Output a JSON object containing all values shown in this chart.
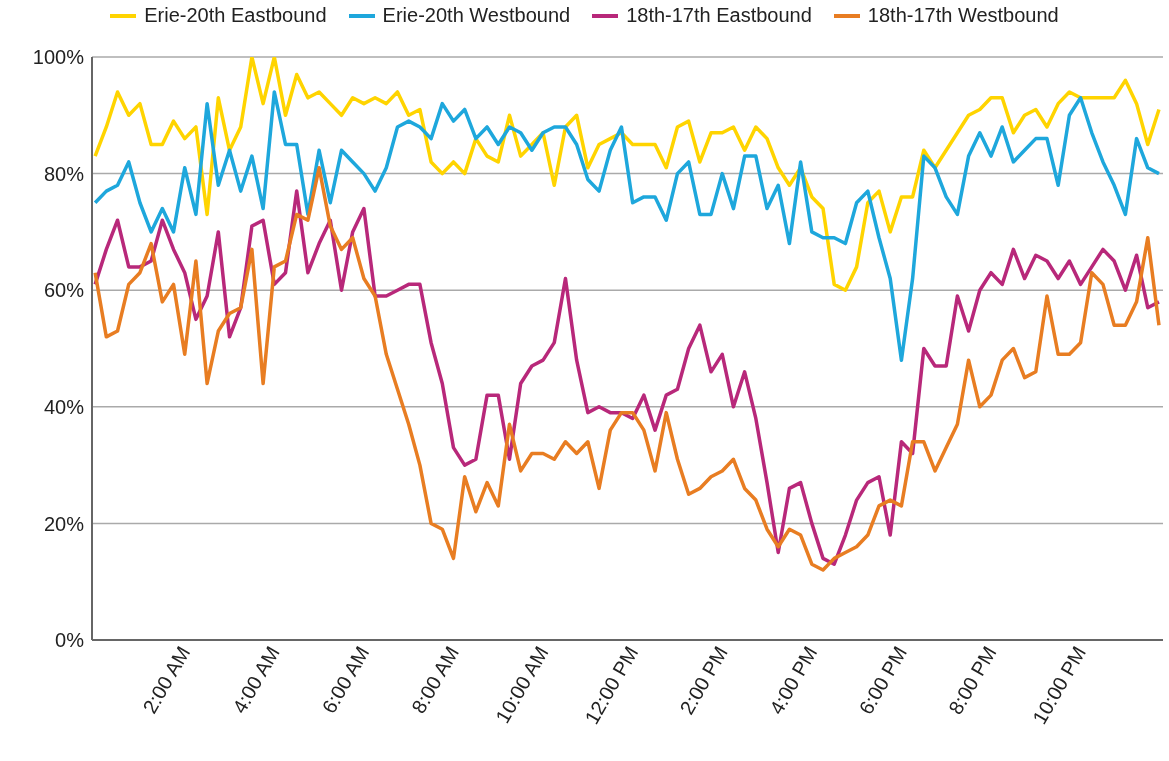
{
  "chart_data": {
    "type": "line",
    "x": [
      0,
      0.25,
      0.5,
      0.75,
      1,
      1.25,
      1.5,
      1.75,
      2,
      2.25,
      2.5,
      2.75,
      3,
      3.25,
      3.5,
      3.75,
      4,
      4.25,
      4.5,
      4.75,
      5,
      5.25,
      5.5,
      5.75,
      6,
      6.25,
      6.5,
      6.75,
      7,
      7.25,
      7.5,
      7.75,
      8,
      8.25,
      8.5,
      8.75,
      9,
      9.25,
      9.5,
      9.75,
      10,
      10.25,
      10.5,
      10.75,
      11,
      11.25,
      11.5,
      11.75,
      12,
      12.25,
      12.5,
      12.75,
      13,
      13.25,
      13.5,
      13.75,
      14,
      14.25,
      14.5,
      14.75,
      15,
      15.25,
      15.5,
      15.75,
      16,
      16.25,
      16.5,
      16.75,
      17,
      17.25,
      17.5,
      17.75,
      18,
      18.25,
      18.5,
      18.75,
      19,
      19.25,
      19.5,
      19.75,
      20,
      20.25,
      20.5,
      20.75,
      21,
      21.25,
      21.5,
      21.75,
      22,
      22.25,
      22.5,
      22.75,
      23,
      23.25,
      23.5,
      23.75
    ],
    "series": [
      {
        "name": "Erie-20th Eastbound",
        "color": "#ffd400",
        "values": [
          83,
          88,
          94,
          90,
          92,
          85,
          85,
          89,
          86,
          88,
          73,
          93,
          84,
          88,
          100,
          92,
          100,
          90,
          97,
          93,
          94,
          92,
          90,
          93,
          92,
          93,
          92,
          94,
          90,
          91,
          82,
          80,
          82,
          80,
          86,
          83,
          82,
          90,
          83,
          85,
          87,
          78,
          88,
          90,
          81,
          85,
          86,
          87,
          85,
          85,
          85,
          81,
          88,
          89,
          82,
          87,
          87,
          88,
          84,
          88,
          86,
          81,
          78,
          81,
          76,
          74,
          61,
          60,
          64,
          75,
          77,
          70,
          76,
          76,
          84,
          81,
          84,
          87,
          90,
          91,
          93,
          93,
          87,
          90,
          91,
          88,
          92,
          94,
          93,
          93,
          93,
          93,
          96,
          92,
          85,
          91
        ]
      },
      {
        "name": "Erie-20th Westbound",
        "color": "#1ea7dc",
        "values": [
          75,
          77,
          78,
          82,
          75,
          70,
          74,
          70,
          81,
          73,
          92,
          78,
          84,
          77,
          83,
          74,
          94,
          85,
          85,
          73,
          84,
          75,
          84,
          82,
          80,
          77,
          81,
          88,
          89,
          88,
          86,
          92,
          89,
          91,
          86,
          88,
          85,
          88,
          87,
          84,
          87,
          88,
          88,
          85,
          79,
          77,
          84,
          88,
          75,
          76,
          76,
          72,
          80,
          82,
          73,
          73,
          80,
          74,
          83,
          83,
          74,
          78,
          68,
          82,
          70,
          69,
          69,
          68,
          75,
          77,
          69,
          62,
          48,
          62,
          83,
          81,
          76,
          73,
          83,
          87,
          83,
          88,
          82,
          84,
          86,
          86,
          78,
          90,
          93,
          87,
          82,
          78,
          73,
          86,
          81,
          80
        ]
      },
      {
        "name": "18th-17th Eastbound",
        "color": "#b8287a",
        "values": [
          61,
          67,
          72,
          64,
          64,
          65,
          72,
          67,
          63,
          55,
          59,
          70,
          52,
          57,
          71,
          72,
          61,
          63,
          77,
          63,
          68,
          72,
          60,
          70,
          74,
          59,
          59,
          60,
          61,
          61,
          51,
          44,
          33,
          30,
          31,
          42,
          42,
          31,
          44,
          47,
          48,
          51,
          62,
          48,
          39,
          40,
          39,
          39,
          38,
          42,
          36,
          42,
          43,
          50,
          54,
          46,
          49,
          40,
          46,
          38,
          27,
          15,
          26,
          27,
          20,
          14,
          13,
          18,
          24,
          27,
          28,
          18,
          34,
          32,
          50,
          47,
          47,
          59,
          53,
          60,
          63,
          61,
          67,
          62,
          66,
          65,
          62,
          65,
          61,
          64,
          67,
          65,
          60,
          66,
          57,
          58
        ]
      },
      {
        "name": "18th-17th Westbound",
        "color": "#e87d22",
        "values": [
          63,
          52,
          53,
          61,
          63,
          68,
          58,
          61,
          49,
          65,
          44,
          53,
          56,
          57,
          67,
          44,
          64,
          65,
          73,
          72,
          81,
          71,
          67,
          69,
          62,
          59,
          49,
          43,
          37,
          30,
          20,
          19,
          14,
          28,
          22,
          27,
          23,
          37,
          29,
          32,
          32,
          31,
          34,
          32,
          34,
          26,
          36,
          39,
          39,
          36,
          29,
          39,
          31,
          25,
          26,
          28,
          29,
          31,
          26,
          24,
          19,
          16,
          19,
          18,
          13,
          12,
          14,
          15,
          16,
          18,
          23,
          24,
          23,
          34,
          34,
          29,
          33,
          37,
          48,
          40,
          42,
          48,
          50,
          45,
          46,
          59,
          49,
          49,
          51,
          63,
          61,
          54,
          54,
          58,
          69,
          54
        ]
      }
    ],
    "xlim": [
      -0.07,
      23.84
    ],
    "xticks": [
      {
        "value": 2,
        "label": "2:00 AM"
      },
      {
        "value": 4,
        "label": "4:00 AM"
      },
      {
        "value": 6,
        "label": "6:00 AM"
      },
      {
        "value": 8,
        "label": "8:00 AM"
      },
      {
        "value": 10,
        "label": "10:00 AM"
      },
      {
        "value": 12,
        "label": "12:00 PM"
      },
      {
        "value": 14,
        "label": "2:00 PM"
      },
      {
        "value": 16,
        "label": "4:00 PM"
      },
      {
        "value": 18,
        "label": "6:00 PM"
      },
      {
        "value": 20,
        "label": "8:00 PM"
      },
      {
        "value": 22,
        "label": "10:00 PM"
      }
    ],
    "ylim": [
      0,
      100
    ],
    "yticks": [
      {
        "value": 0,
        "label": "0%"
      },
      {
        "value": 20,
        "label": "20%"
      },
      {
        "value": 40,
        "label": "40%"
      },
      {
        "value": 60,
        "label": "60%"
      },
      {
        "value": 80,
        "label": "80%"
      },
      {
        "value": 100,
        "label": "100%"
      }
    ],
    "grid": "y",
    "legend": "top",
    "line_style": "solid"
  }
}
